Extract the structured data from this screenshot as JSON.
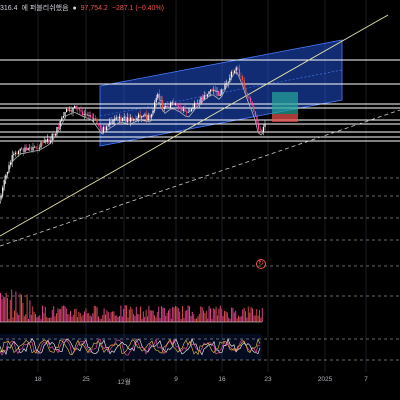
{
  "header": {
    "partial_value": "316.4",
    "title_korean": "에 퍼블리쉬했음",
    "last_price": "97,754.2",
    "change": "−287.1 (−0.40%)"
  },
  "x_axis_labels": [
    "18",
    "25",
    "12월",
    "9",
    "16",
    "23",
    "2025",
    "7"
  ],
  "colors": {
    "background": "#000000",
    "grid": "#1e2230",
    "horizontal_line": "#ffffff",
    "channel_fill": "#2962ff",
    "trend_line": "#e8e3a8",
    "candle_up": "#ffffff",
    "candle_down": "#ef5350",
    "accent_pink": "#ff4da6",
    "teal_box": "#26a69a",
    "red_box": "#ef5350"
  },
  "icons": {
    "replay": "replay-icon"
  }
}
